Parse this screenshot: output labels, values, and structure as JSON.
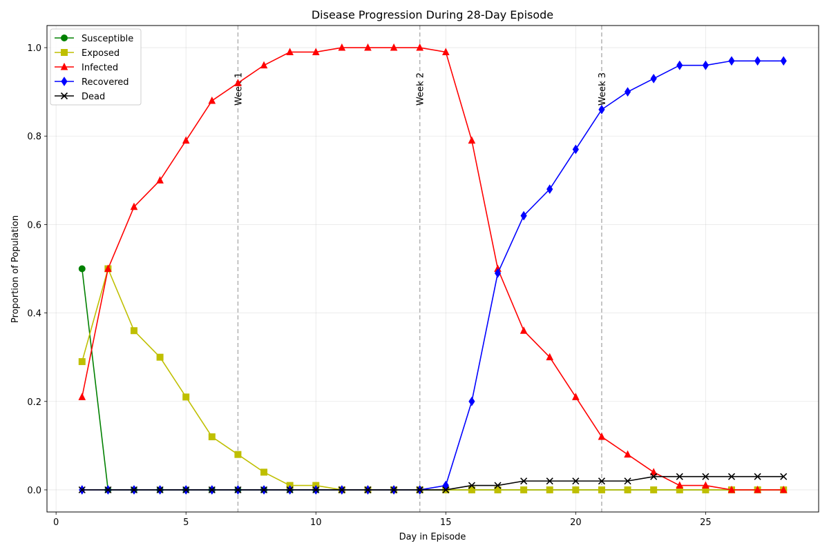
{
  "chart_data": {
    "type": "line",
    "title": "Disease Progression During 28-Day Episode",
    "xlabel": "Day in Episode",
    "ylabel": "Proportion of Population",
    "xlim": [
      -0.35,
      29.35
    ],
    "ylim": [
      -0.05,
      1.05
    ],
    "xticks": [
      0,
      5,
      10,
      15,
      20,
      25
    ],
    "yticks": [
      0.0,
      0.2,
      0.4,
      0.6,
      0.8,
      1.0
    ],
    "grid": true,
    "legend_position": "top-left",
    "x": [
      1,
      2,
      3,
      4,
      5,
      6,
      7,
      8,
      9,
      10,
      11,
      12,
      13,
      14,
      15,
      16,
      17,
      18,
      19,
      20,
      21,
      22,
      23,
      24,
      25,
      26,
      27,
      28
    ],
    "series": [
      {
        "name": "Susceptible",
        "color": "#008000",
        "marker": "circle",
        "values": [
          0.5,
          0,
          0,
          0,
          0,
          0,
          0,
          0,
          0,
          0,
          0,
          0,
          0,
          0,
          0,
          0,
          0,
          0,
          0,
          0,
          0,
          0,
          0,
          0,
          0,
          0,
          0,
          0
        ]
      },
      {
        "name": "Exposed",
        "color": "#bfbf00",
        "marker": "square",
        "values": [
          0.29,
          0.5,
          0.36,
          0.3,
          0.21,
          0.12,
          0.08,
          0.04,
          0.01,
          0.01,
          0,
          0,
          0,
          0,
          0,
          0,
          0,
          0,
          0,
          0,
          0,
          0,
          0,
          0,
          0,
          0,
          0,
          0
        ]
      },
      {
        "name": "Infected",
        "color": "#ff0000",
        "marker": "triangle",
        "values": [
          0.21,
          0.5,
          0.64,
          0.7,
          0.79,
          0.88,
          0.92,
          0.96,
          0.99,
          0.99,
          1.0,
          1.0,
          1.0,
          1.0,
          0.99,
          0.79,
          0.5,
          0.36,
          0.3,
          0.21,
          0.12,
          0.08,
          0.04,
          0.01,
          0.01,
          0,
          0,
          0
        ]
      },
      {
        "name": "Recovered",
        "color": "#0000ff",
        "marker": "diamond",
        "values": [
          0,
          0,
          0,
          0,
          0,
          0,
          0,
          0,
          0,
          0,
          0,
          0,
          0,
          0,
          0.01,
          0.2,
          0.49,
          0.62,
          0.68,
          0.77,
          0.86,
          0.9,
          0.93,
          0.96,
          0.96,
          0.97,
          0.97,
          0.97
        ]
      },
      {
        "name": "Dead",
        "color": "#000000",
        "marker": "x",
        "values": [
          0,
          0,
          0,
          0,
          0,
          0,
          0,
          0,
          0,
          0,
          0,
          0,
          0,
          0,
          0,
          0.01,
          0.01,
          0.02,
          0.02,
          0.02,
          0.02,
          0.02,
          0.03,
          0.03,
          0.03,
          0.03,
          0.03,
          0.03
        ]
      }
    ],
    "vertical_lines": [
      {
        "x": 7,
        "label": "Week 1"
      },
      {
        "x": 14,
        "label": "Week 2"
      },
      {
        "x": 21,
        "label": "Week 3"
      }
    ]
  }
}
